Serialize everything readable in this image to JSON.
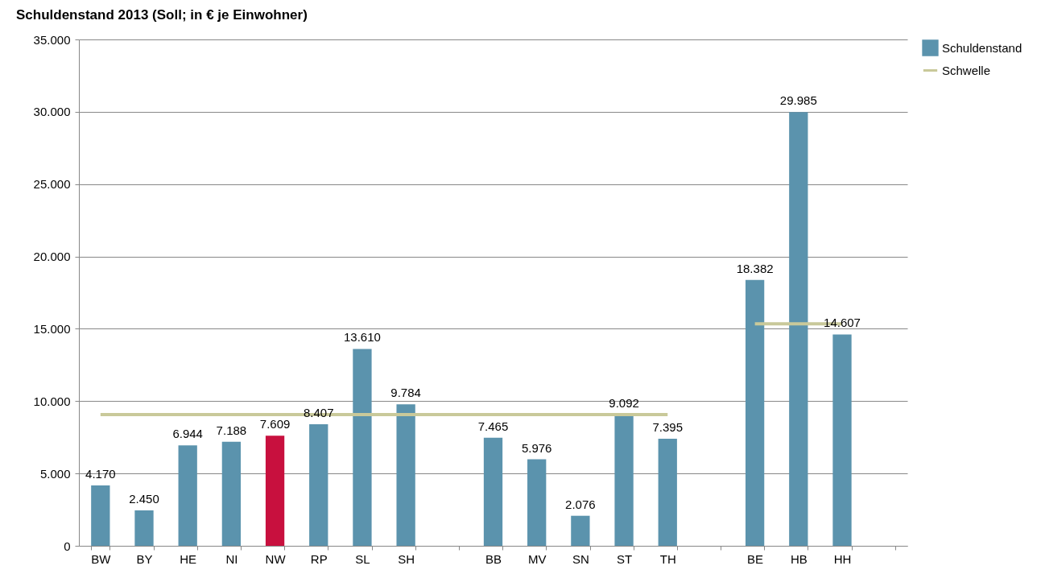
{
  "chart_data": {
    "type": "bar",
    "title": "Schuldenstand 2013 (Soll; in € je Einwohner)",
    "categories": [
      "BW",
      "BY",
      "HE",
      "NI",
      "NW",
      "RP",
      "SL",
      "SH",
      null,
      "BB",
      "MV",
      "SN",
      "ST",
      "TH",
      null,
      "BE",
      "HB",
      "HH",
      null
    ],
    "series": [
      {
        "name": "Schuldenstand",
        "colors": [
          "#5b93ad",
          "#5b93ad",
          "#5b93ad",
          "#5b93ad",
          "#c8103e",
          "#5b93ad",
          "#5b93ad",
          "#5b93ad",
          null,
          "#5b93ad",
          "#5b93ad",
          "#5b93ad",
          "#5b93ad",
          "#5b93ad",
          null,
          "#5b93ad",
          "#5b93ad",
          "#5b93ad",
          null
        ],
        "color": "#5b93ad",
        "values": [
          4170,
          2450,
          6944,
          7188,
          7609,
          8407,
          13610,
          9784,
          null,
          7465,
          5976,
          2076,
          9092,
          7395,
          null,
          18382,
          29985,
          14607,
          null
        ],
        "value_labels": [
          "4.170",
          "2.450",
          "6.944",
          "7.188",
          "7.609",
          "8.407",
          "13.610",
          "9.784",
          null,
          "7.465",
          "5.976",
          "2.076",
          "9.092",
          "7.395",
          null,
          "18.382",
          "29.985",
          "14.607",
          null
        ]
      },
      {
        "name": "Schwelle",
        "type": "line",
        "color": "#c9c99a",
        "values": [
          9070,
          9070,
          9070,
          9070,
          9070,
          9070,
          9070,
          9070,
          9070,
          9070,
          9070,
          9070,
          9070,
          9070,
          null,
          15350,
          15350,
          15350,
          null
        ]
      }
    ],
    "ylim": [
      0,
      35000
    ],
    "yticks": [
      {
        "value": 0,
        "label": "0"
      },
      {
        "value": 5000,
        "label": "5.000"
      },
      {
        "value": 10000,
        "label": "10.000"
      },
      {
        "value": 15000,
        "label": "15.000"
      },
      {
        "value": 20000,
        "label": "20.000"
      },
      {
        "value": 25000,
        "label": "25.000"
      },
      {
        "value": 30000,
        "label": "30.000"
      },
      {
        "value": 35000,
        "label": "35.000"
      }
    ],
    "grid": "y",
    "legend": "right"
  }
}
